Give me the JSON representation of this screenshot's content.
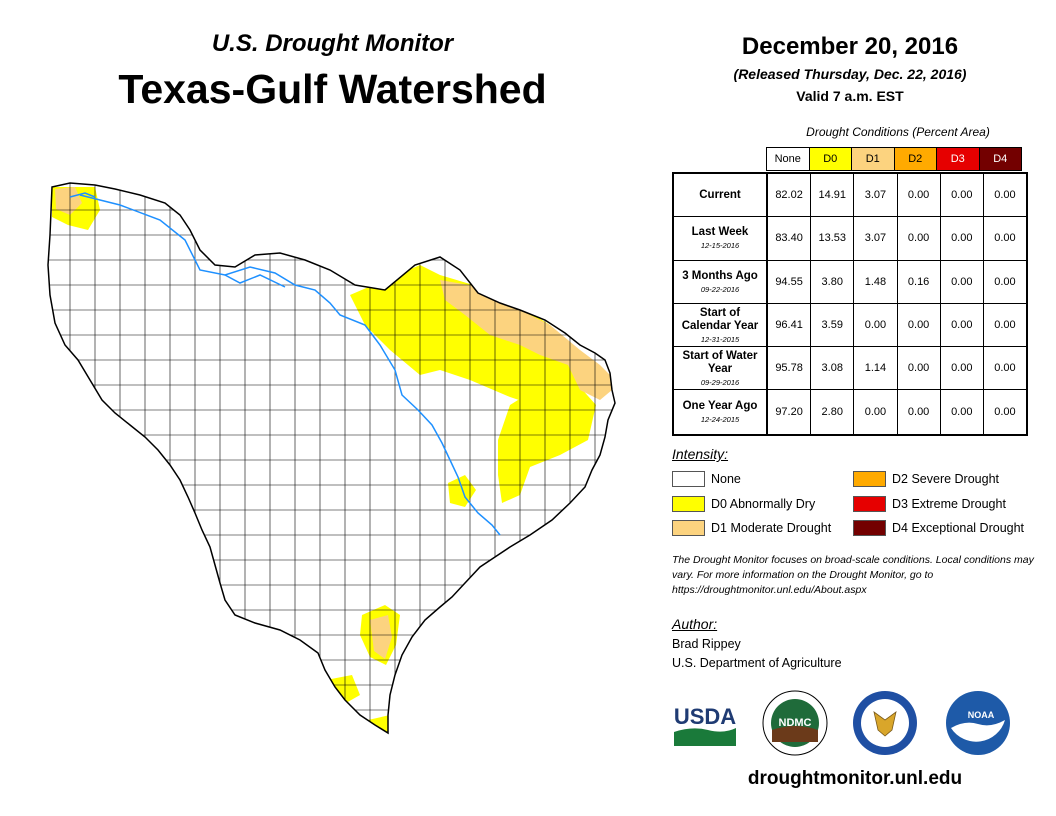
{
  "header": {
    "subtitle": "U.S. Drought Monitor",
    "title": "Texas-Gulf Watershed",
    "date": "December 20, 2016",
    "released": "(Released Thursday, Dec. 22, 2016)",
    "valid": "Valid 7 a.m. EST"
  },
  "conditions": {
    "caption": "Drought Conditions (Percent Area)",
    "columns": [
      {
        "label": "None",
        "color": "#ffffff"
      },
      {
        "label": "D0",
        "color": "#ffff00"
      },
      {
        "label": "D1",
        "color": "#fcd37f"
      },
      {
        "label": "D2",
        "color": "#ffaa00"
      },
      {
        "label": "D3",
        "color": "#e60000"
      },
      {
        "label": "D4",
        "color": "#730000"
      }
    ],
    "rows": [
      {
        "label": "Current",
        "date": "",
        "values": [
          "82.02",
          "14.91",
          "3.07",
          "0.00",
          "0.00",
          "0.00"
        ]
      },
      {
        "label": "Last Week",
        "date": "12-15-2016",
        "values": [
          "83.40",
          "13.53",
          "3.07",
          "0.00",
          "0.00",
          "0.00"
        ]
      },
      {
        "label": "3 Months Ago",
        "date": "09-22-2016",
        "values": [
          "94.55",
          "3.80",
          "1.48",
          "0.16",
          "0.00",
          "0.00"
        ]
      },
      {
        "label": "Start of Calendar Year",
        "date": "12-31-2015",
        "values": [
          "96.41",
          "3.59",
          "0.00",
          "0.00",
          "0.00",
          "0.00"
        ]
      },
      {
        "label": "Start of Water Year",
        "date": "09-29-2016",
        "values": [
          "95.78",
          "3.08",
          "1.14",
          "0.00",
          "0.00",
          "0.00"
        ]
      },
      {
        "label": "One Year Ago",
        "date": "12-24-2015",
        "values": [
          "97.20",
          "2.80",
          "0.00",
          "0.00",
          "0.00",
          "0.00"
        ]
      }
    ]
  },
  "legend": {
    "title": "Intensity:",
    "items": [
      {
        "label": "None",
        "color": "#ffffff"
      },
      {
        "label": "D0 Abnormally Dry",
        "color": "#ffff00"
      },
      {
        "label": "D1 Moderate Drought",
        "color": "#fcd37f"
      },
      {
        "label": "D2 Severe Drought",
        "color": "#ffaa00"
      },
      {
        "label": "D3 Extreme Drought",
        "color": "#e60000"
      },
      {
        "label": "D4 Exceptional Drought",
        "color": "#730000"
      }
    ]
  },
  "note": "The Drought Monitor focuses on broad-scale conditions. Local conditions may vary. For more information on the Drought Monitor, go to https://droughtmonitor.unl.edu/About.aspx",
  "author": {
    "title": "Author:",
    "name": "Brad Rippey",
    "organization": "U.S. Department of Agriculture"
  },
  "logos": {
    "usda": "USDA",
    "ndmc": "NDMC",
    "noaa": "NOAA"
  },
  "footer_url": "droughtmonitor.unl.edu",
  "map": {
    "river_color": "#1e90ff"
  }
}
